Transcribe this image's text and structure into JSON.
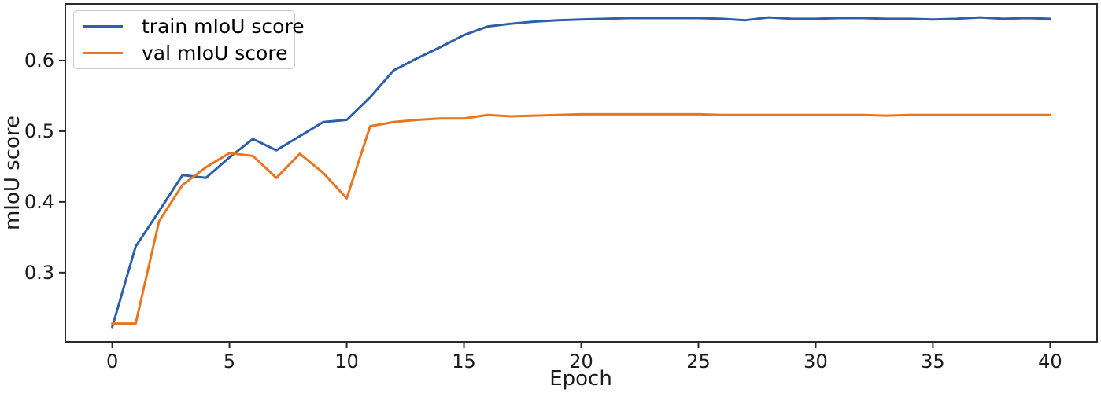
{
  "chart_data": {
    "type": "line",
    "title": "",
    "xlabel": "Epoch",
    "ylabel": "mIoU score",
    "xlim": [
      -2,
      42
    ],
    "ylim": [
      0.202,
      0.68
    ],
    "grid": false,
    "legend_position": "upper left",
    "xticks": [
      0,
      5,
      10,
      15,
      20,
      25,
      30,
      35,
      40
    ],
    "xtick_labels": [
      "0",
      "5",
      "10",
      "15",
      "20",
      "25",
      "30",
      "35",
      "40"
    ],
    "yticks": [
      0.3,
      0.4,
      0.5,
      0.6
    ],
    "ytick_labels": [
      "0.3",
      "0.4",
      "0.5",
      "0.6"
    ],
    "x": [
      0,
      1,
      2,
      3,
      4,
      5,
      6,
      7,
      8,
      9,
      10,
      11,
      12,
      13,
      14,
      15,
      16,
      17,
      18,
      19,
      20,
      21,
      22,
      23,
      24,
      25,
      26,
      27,
      28,
      29,
      30,
      31,
      32,
      33,
      34,
      35,
      36,
      37,
      38,
      39,
      40
    ],
    "series": [
      {
        "name": "train mIoU score",
        "color": "#2e5fa8",
        "values": [
          0.223,
          0.337,
          0.387,
          0.438,
          0.434,
          0.463,
          0.489,
          0.473,
          0.493,
          0.513,
          0.516,
          0.548,
          0.586,
          0.603,
          0.619,
          0.636,
          0.648,
          0.652,
          0.655,
          0.657,
          0.658,
          0.659,
          0.66,
          0.66,
          0.66,
          0.66,
          0.659,
          0.657,
          0.661,
          0.659,
          0.659,
          0.66,
          0.66,
          0.659,
          0.659,
          0.658,
          0.659,
          0.661,
          0.659,
          0.66,
          0.659
        ]
      },
      {
        "name": "val mIoU score",
        "color": "#e8751f",
        "values": [
          0.228,
          0.228,
          0.373,
          0.424,
          0.449,
          0.469,
          0.465,
          0.434,
          0.468,
          0.441,
          0.405,
          0.507,
          0.513,
          0.516,
          0.518,
          0.518,
          0.523,
          0.521,
          0.522,
          0.523,
          0.524,
          0.524,
          0.524,
          0.524,
          0.524,
          0.524,
          0.523,
          0.523,
          0.523,
          0.523,
          0.523,
          0.523,
          0.523,
          0.522,
          0.523,
          0.523,
          0.523,
          0.523,
          0.523,
          0.523,
          0.523
        ]
      }
    ],
    "spine_color": "#2a2a2a"
  }
}
